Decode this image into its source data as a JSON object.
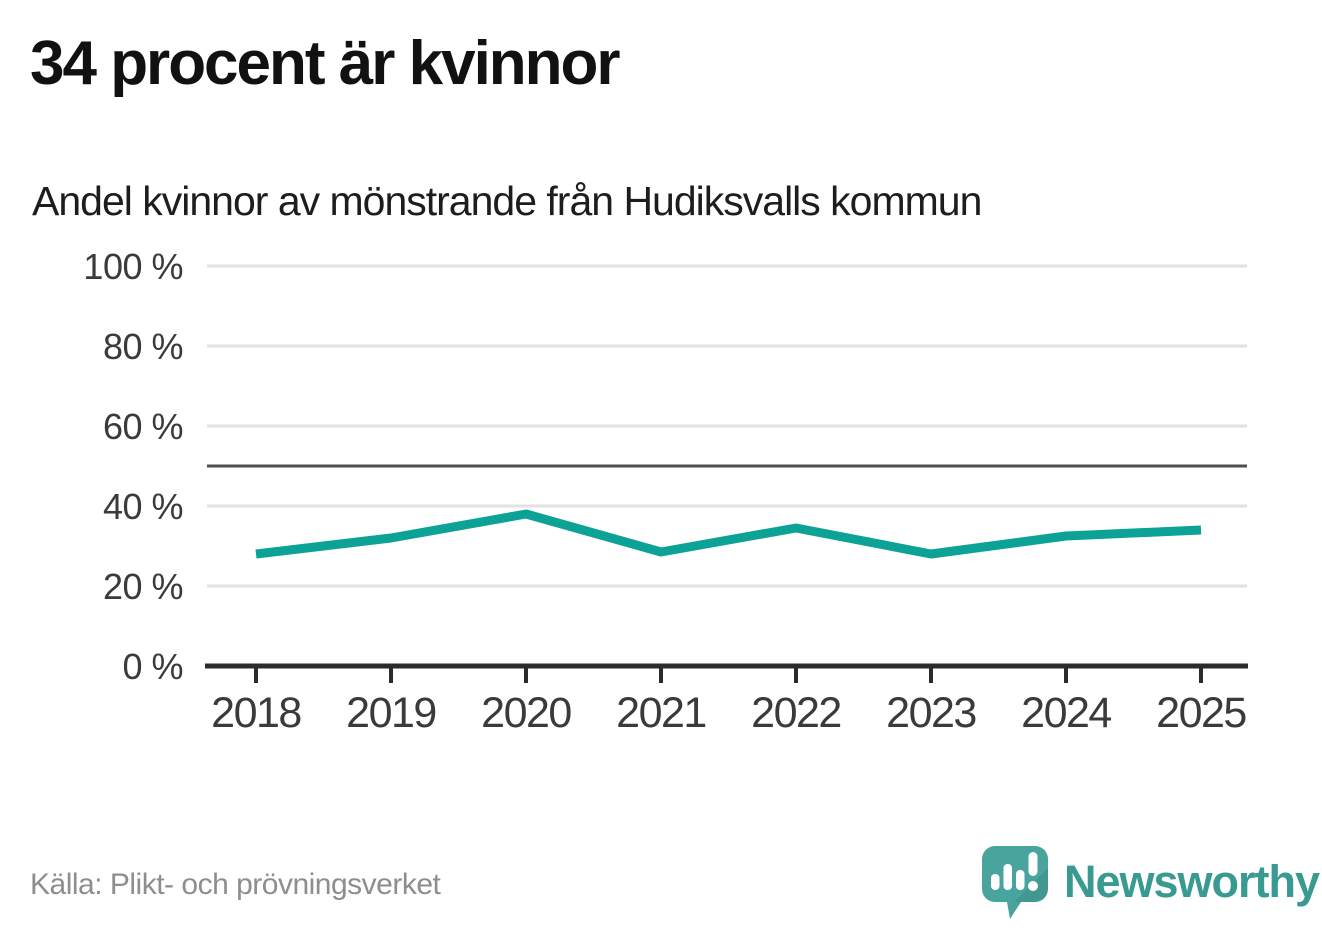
{
  "header": {
    "title": "34 procent är kvinnor",
    "subtitle": "Andel kvinnor av mönstrande från Hudiksvalls kommun"
  },
  "chart_data": {
    "type": "line",
    "title": "34 procent är kvinnor",
    "subtitle": "Andel kvinnor av mönstrande från Hudiksvalls kommun",
    "x": [
      "2018",
      "2019",
      "2020",
      "2021",
      "2022",
      "2023",
      "2024",
      "2025"
    ],
    "series": [
      {
        "name": "Andel kvinnor av mönstrande",
        "values": [
          28,
          32,
          38,
          28.5,
          34.5,
          28,
          32.5,
          34
        ]
      }
    ],
    "xlabel": "",
    "ylabel": "",
    "ylim": [
      0,
      100
    ],
    "yticks": [
      0,
      20,
      40,
      60,
      80,
      100
    ],
    "ytick_labels": [
      "0 %",
      "20 %",
      "40 %",
      "60 %",
      "80 %",
      "100 %"
    ],
    "reference_line": 50,
    "grid": true,
    "legend_position": "none",
    "line_color": "#0ca296",
    "reference_line_color": "#4d4d4d",
    "gridline_color": "#e2e2e2",
    "axis_color": "#2b2b2b",
    "tick_label_color": "#3a3a3a"
  },
  "footer": {
    "source": "Källa: Plikt- och prövningsverket",
    "brand": "Newsworthy",
    "brand_icon": "bar-chart-speech-bubble-icon",
    "brand_color": "#399a91",
    "brand_bubble_color": "#4aa49e"
  }
}
